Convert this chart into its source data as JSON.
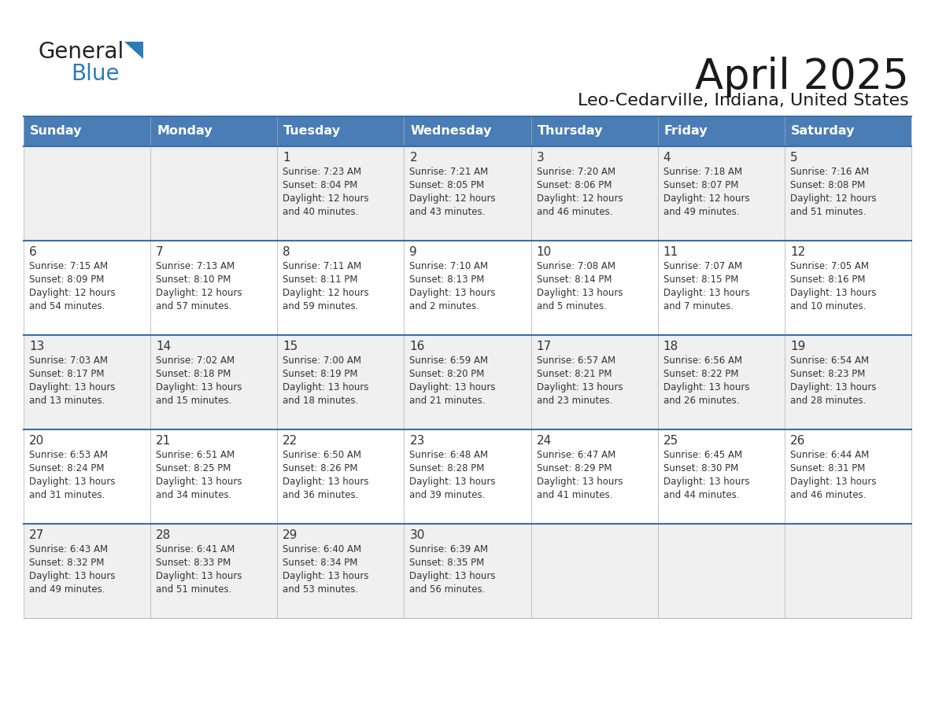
{
  "title": "April 2025",
  "subtitle": "Leo-Cedarville, Indiana, United States",
  "days_of_week": [
    "Sunday",
    "Monday",
    "Tuesday",
    "Wednesday",
    "Thursday",
    "Friday",
    "Saturday"
  ],
  "header_bg": "#4A7DB5",
  "header_text_color": "#FFFFFF",
  "cell_bg_odd": "#F0F0F0",
  "cell_bg_even": "#FFFFFF",
  "row_sep_color": "#3A6EA8",
  "cell_border_color": "#BBBBBB",
  "text_color": "#333333",
  "title_color": "#1A1A1A",
  "logo_general_color": "#222222",
  "logo_blue_color": "#2B7BB9",
  "weeks": [
    {
      "days": [
        {
          "date": "",
          "info": ""
        },
        {
          "date": "",
          "info": ""
        },
        {
          "date": "1",
          "info": "Sunrise: 7:23 AM\nSunset: 8:04 PM\nDaylight: 12 hours\nand 40 minutes."
        },
        {
          "date": "2",
          "info": "Sunrise: 7:21 AM\nSunset: 8:05 PM\nDaylight: 12 hours\nand 43 minutes."
        },
        {
          "date": "3",
          "info": "Sunrise: 7:20 AM\nSunset: 8:06 PM\nDaylight: 12 hours\nand 46 minutes."
        },
        {
          "date": "4",
          "info": "Sunrise: 7:18 AM\nSunset: 8:07 PM\nDaylight: 12 hours\nand 49 minutes."
        },
        {
          "date": "5",
          "info": "Sunrise: 7:16 AM\nSunset: 8:08 PM\nDaylight: 12 hours\nand 51 minutes."
        }
      ]
    },
    {
      "days": [
        {
          "date": "6",
          "info": "Sunrise: 7:15 AM\nSunset: 8:09 PM\nDaylight: 12 hours\nand 54 minutes."
        },
        {
          "date": "7",
          "info": "Sunrise: 7:13 AM\nSunset: 8:10 PM\nDaylight: 12 hours\nand 57 minutes."
        },
        {
          "date": "8",
          "info": "Sunrise: 7:11 AM\nSunset: 8:11 PM\nDaylight: 12 hours\nand 59 minutes."
        },
        {
          "date": "9",
          "info": "Sunrise: 7:10 AM\nSunset: 8:13 PM\nDaylight: 13 hours\nand 2 minutes."
        },
        {
          "date": "10",
          "info": "Sunrise: 7:08 AM\nSunset: 8:14 PM\nDaylight: 13 hours\nand 5 minutes."
        },
        {
          "date": "11",
          "info": "Sunrise: 7:07 AM\nSunset: 8:15 PM\nDaylight: 13 hours\nand 7 minutes."
        },
        {
          "date": "12",
          "info": "Sunrise: 7:05 AM\nSunset: 8:16 PM\nDaylight: 13 hours\nand 10 minutes."
        }
      ]
    },
    {
      "days": [
        {
          "date": "13",
          "info": "Sunrise: 7:03 AM\nSunset: 8:17 PM\nDaylight: 13 hours\nand 13 minutes."
        },
        {
          "date": "14",
          "info": "Sunrise: 7:02 AM\nSunset: 8:18 PM\nDaylight: 13 hours\nand 15 minutes."
        },
        {
          "date": "15",
          "info": "Sunrise: 7:00 AM\nSunset: 8:19 PM\nDaylight: 13 hours\nand 18 minutes."
        },
        {
          "date": "16",
          "info": "Sunrise: 6:59 AM\nSunset: 8:20 PM\nDaylight: 13 hours\nand 21 minutes."
        },
        {
          "date": "17",
          "info": "Sunrise: 6:57 AM\nSunset: 8:21 PM\nDaylight: 13 hours\nand 23 minutes."
        },
        {
          "date": "18",
          "info": "Sunrise: 6:56 AM\nSunset: 8:22 PM\nDaylight: 13 hours\nand 26 minutes."
        },
        {
          "date": "19",
          "info": "Sunrise: 6:54 AM\nSunset: 8:23 PM\nDaylight: 13 hours\nand 28 minutes."
        }
      ]
    },
    {
      "days": [
        {
          "date": "20",
          "info": "Sunrise: 6:53 AM\nSunset: 8:24 PM\nDaylight: 13 hours\nand 31 minutes."
        },
        {
          "date": "21",
          "info": "Sunrise: 6:51 AM\nSunset: 8:25 PM\nDaylight: 13 hours\nand 34 minutes."
        },
        {
          "date": "22",
          "info": "Sunrise: 6:50 AM\nSunset: 8:26 PM\nDaylight: 13 hours\nand 36 minutes."
        },
        {
          "date": "23",
          "info": "Sunrise: 6:48 AM\nSunset: 8:28 PM\nDaylight: 13 hours\nand 39 minutes."
        },
        {
          "date": "24",
          "info": "Sunrise: 6:47 AM\nSunset: 8:29 PM\nDaylight: 13 hours\nand 41 minutes."
        },
        {
          "date": "25",
          "info": "Sunrise: 6:45 AM\nSunset: 8:30 PM\nDaylight: 13 hours\nand 44 minutes."
        },
        {
          "date": "26",
          "info": "Sunrise: 6:44 AM\nSunset: 8:31 PM\nDaylight: 13 hours\nand 46 minutes."
        }
      ]
    },
    {
      "days": [
        {
          "date": "27",
          "info": "Sunrise: 6:43 AM\nSunset: 8:32 PM\nDaylight: 13 hours\nand 49 minutes."
        },
        {
          "date": "28",
          "info": "Sunrise: 6:41 AM\nSunset: 8:33 PM\nDaylight: 13 hours\nand 51 minutes."
        },
        {
          "date": "29",
          "info": "Sunrise: 6:40 AM\nSunset: 8:34 PM\nDaylight: 13 hours\nand 53 minutes."
        },
        {
          "date": "30",
          "info": "Sunrise: 6:39 AM\nSunset: 8:35 PM\nDaylight: 13 hours\nand 56 minutes."
        },
        {
          "date": "",
          "info": ""
        },
        {
          "date": "",
          "info": ""
        },
        {
          "date": "",
          "info": ""
        }
      ]
    }
  ]
}
